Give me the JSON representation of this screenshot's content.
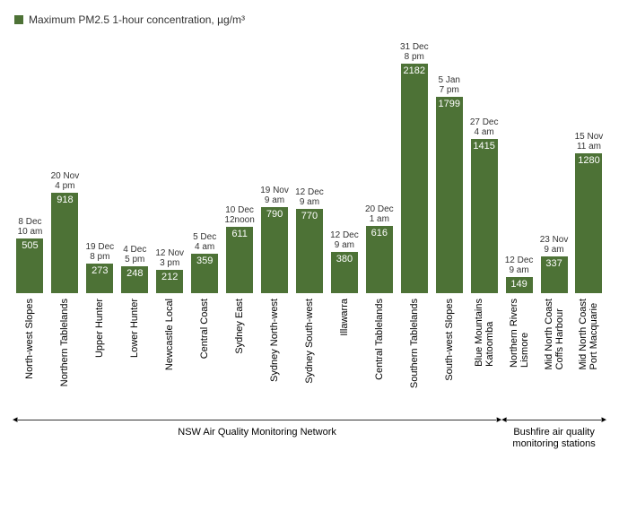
{
  "legend": {
    "text": "Maximum PM2.5 1-hour concentration, µg/m³",
    "swatch_color": "#4d7236",
    "text_color": "#333333"
  },
  "chart": {
    "type": "bar",
    "bar_color": "#4d7236",
    "value_text_color": "#ffffff",
    "annot_text_color": "#333333",
    "background_color": "#ffffff",
    "max_value": 2300,
    "bar_fontsize": 11,
    "annot_fontsize": 10,
    "label_fontsize": 11,
    "group_label_fontsize": 11,
    "bars": [
      {
        "label": "North-west Slopes",
        "label2": "",
        "value": 505,
        "date": "8 Dec",
        "time": "10 am",
        "group": 0
      },
      {
        "label": "Northern Tablelands",
        "label2": "",
        "value": 918,
        "date": "20 Nov",
        "time": "4 pm",
        "group": 0
      },
      {
        "label": "Upper Hunter",
        "label2": "",
        "value": 273,
        "date": "19 Dec",
        "time": "8 pm",
        "group": 0
      },
      {
        "label": "Lower Hunter",
        "label2": "",
        "value": 248,
        "date": "4 Dec",
        "time": "5 pm",
        "group": 0
      },
      {
        "label": "Newcastle Local",
        "label2": "",
        "value": 212,
        "date": "12 Nov",
        "time": "3 pm",
        "group": 0
      },
      {
        "label": "Central Coast",
        "label2": "",
        "value": 359,
        "date": "5 Dec",
        "time": "4 am",
        "group": 0
      },
      {
        "label": "Sydney East",
        "label2": "",
        "value": 611,
        "date": "10 Dec",
        "time": "12noon",
        "group": 0
      },
      {
        "label": "Sydney North-west",
        "label2": "",
        "value": 790,
        "date": "19 Nov",
        "time": "9 am",
        "group": 0
      },
      {
        "label": "Sydney South-west",
        "label2": "",
        "value": 770,
        "date": "12 Dec",
        "time": "9 am",
        "group": 0
      },
      {
        "label": "Illawarra",
        "label2": "",
        "value": 380,
        "date": "12 Dec",
        "time": "9 am",
        "group": 0
      },
      {
        "label": "Central Tablelands",
        "label2": "",
        "value": 616,
        "date": "20 Dec",
        "time": "1 am",
        "group": 0
      },
      {
        "label": "Southern Tablelands",
        "label2": "",
        "value": 2182,
        "date": "31 Dec",
        "time": "8 pm",
        "group": 0
      },
      {
        "label": "South-west Slopes",
        "label2": "",
        "value": 1799,
        "date": "5 Jan",
        "time": "7 pm",
        "group": 0
      },
      {
        "label": "Blue Mountains",
        "label2": "Katoomba",
        "value": 1415,
        "date": "27 Dec",
        "time": "4 am",
        "group": 0
      },
      {
        "label": "Northern Rivers",
        "label2": "Lismore",
        "value": 149,
        "date": "12 Dec",
        "time": "9 am",
        "group": 1
      },
      {
        "label": "Mid North Coast",
        "label2": "Coffs Harbour",
        "value": 337,
        "date": "23 Nov",
        "time": "9 am",
        "group": 1
      },
      {
        "label": "Mid North Coast",
        "label2": "Port Macquarie",
        "value": 1280,
        "date": "15 Nov",
        "time": "11 am",
        "group": 1
      }
    ],
    "groups": [
      {
        "label": "NSW Air Quality Monitoring Network",
        "label2": ""
      },
      {
        "label": "Bushfire air quality",
        "label2": "monitoring stations"
      }
    ]
  }
}
